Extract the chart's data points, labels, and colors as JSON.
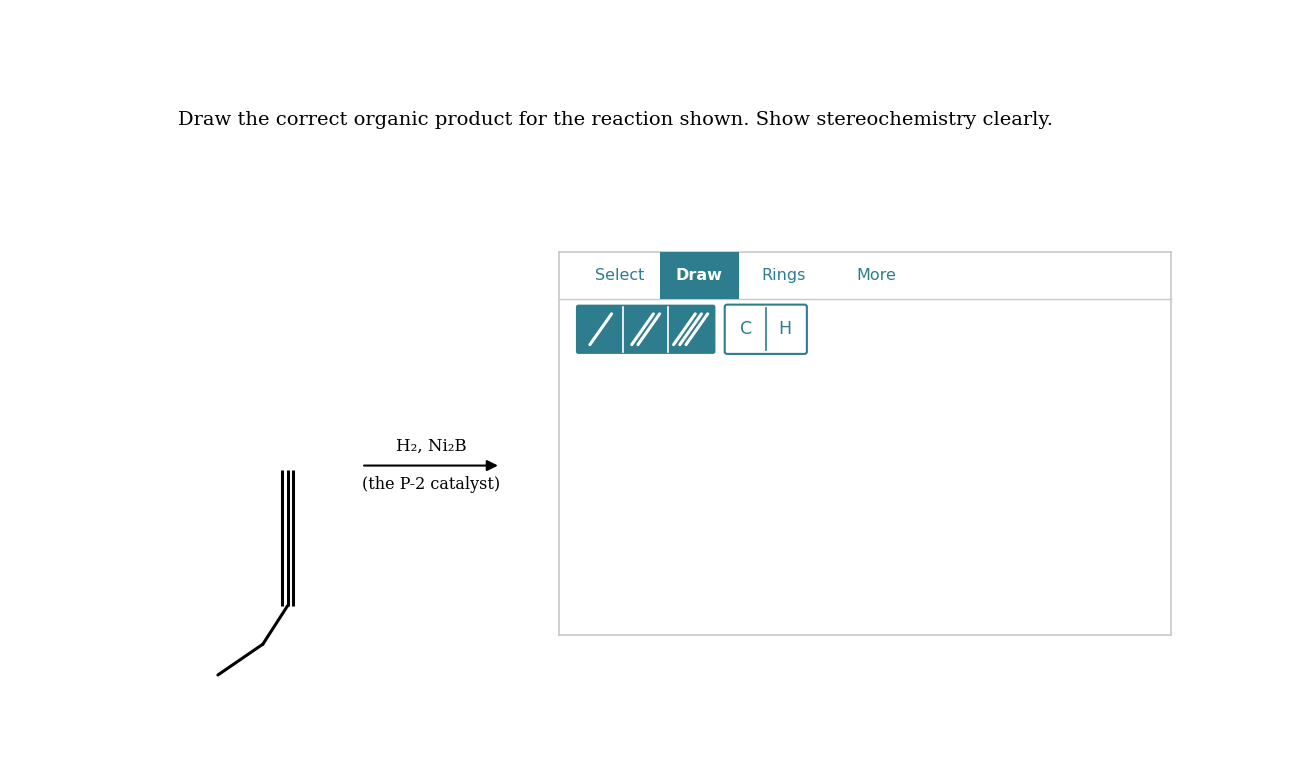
{
  "title": "Draw the correct organic product for the reaction shown. Show stereochemistry clearly.",
  "bg_color": "#ffffff",
  "panel_border_color": "#c8c8c8",
  "toolbar_teal": "#2e7d8e",
  "tab_labels": [
    "Select",
    "Draw",
    "Rings",
    "More"
  ],
  "atom_buttons": [
    "C",
    "H"
  ],
  "reagent_text": "H₂, Ni₂B",
  "catalyst_text": "(the P-2 catalyst)"
}
